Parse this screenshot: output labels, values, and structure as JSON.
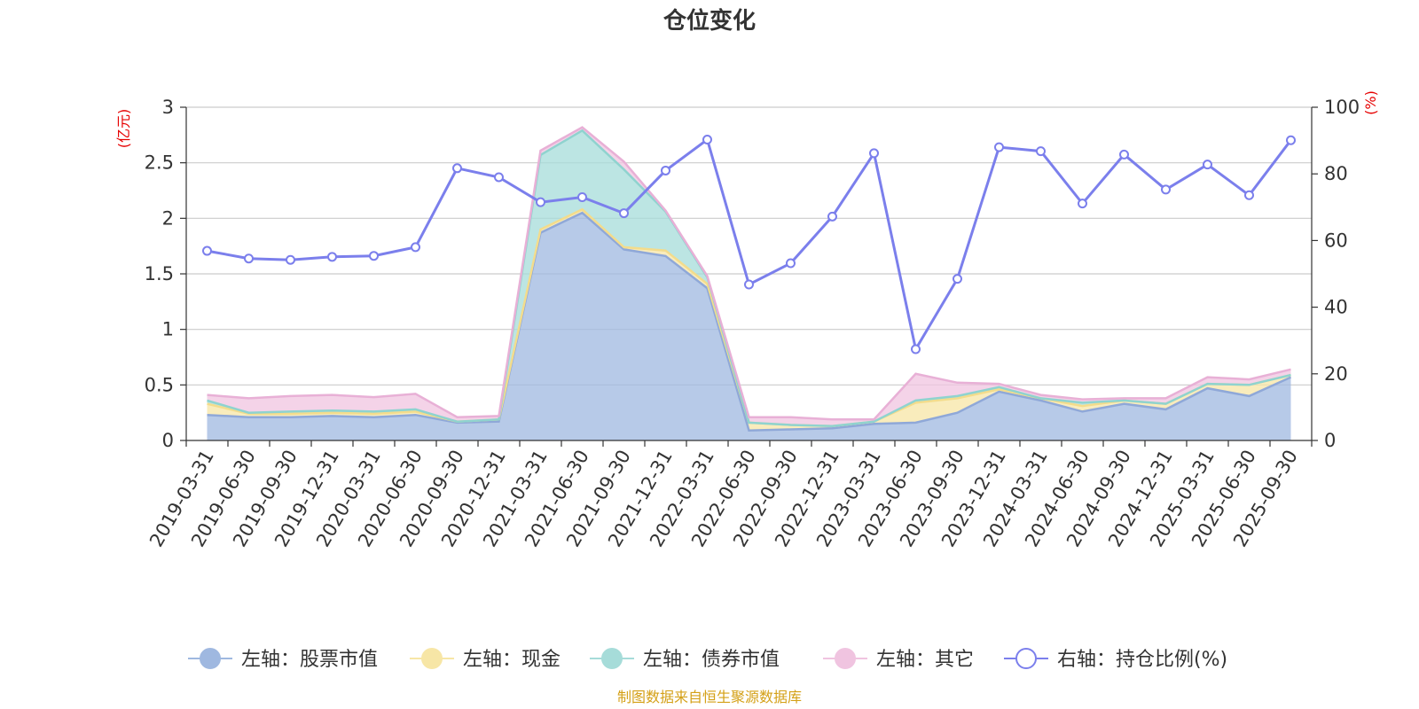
{
  "chart_data": {
    "type": "area",
    "title": "仓位变化",
    "source": "制图数据来自恒生聚源数据库",
    "left_axis": {
      "unit": "(亿元)",
      "range": [
        0,
        3
      ],
      "ticks": [
        "0",
        "0.5",
        "1",
        "1.5",
        "2",
        "2.5",
        "3"
      ],
      "tick_values": [
        0,
        0.5,
        1,
        1.5,
        2,
        2.5,
        3
      ]
    },
    "right_axis": {
      "unit": "(%)",
      "range": [
        0,
        100
      ],
      "ticks": [
        "0",
        "20",
        "40",
        "60",
        "80",
        "100"
      ],
      "tick_values": [
        0,
        20,
        40,
        60,
        80,
        100
      ]
    },
    "categories": [
      "2019-03-31",
      "2019-06-30",
      "2019-09-30",
      "2019-12-31",
      "2020-03-31",
      "2020-06-30",
      "2020-09-30",
      "2020-12-31",
      "2021-03-31",
      "2021-06-30",
      "2021-09-30",
      "2021-12-31",
      "2022-03-31",
      "2022-06-30",
      "2022-09-30",
      "2022-12-31",
      "2023-03-31",
      "2023-06-30",
      "2023-09-30",
      "2023-12-31",
      "2024-03-31",
      "2024-06-30",
      "2024-09-30",
      "2024-12-31",
      "2025-03-31",
      "2025-06-30",
      "2025-09-30"
    ],
    "stacked_series": [
      {
        "name": "左轴：股票市值",
        "color": "#9fb8e0",
        "values": [
          0.23,
          0.21,
          0.21,
          0.22,
          0.21,
          0.23,
          0.16,
          0.17,
          1.87,
          2.05,
          1.72,
          1.66,
          1.37,
          0.09,
          0.1,
          0.11,
          0.15,
          0.16,
          0.25,
          0.44,
          0.36,
          0.26,
          0.33,
          0.28,
          0.47,
          0.4,
          0.57
        ]
      },
      {
        "name": "左轴：现金",
        "color": "#f7e6a6",
        "values": [
          0.1,
          0.03,
          0.03,
          0.03,
          0.03,
          0.03,
          0.01,
          0.02,
          0.03,
          0.03,
          0.02,
          0.05,
          0.04,
          0.07,
          0.04,
          0.02,
          0.02,
          0.18,
          0.13,
          0.02,
          0.02,
          0.05,
          0.03,
          0.05,
          0.04,
          0.1,
          0.02
        ]
      },
      {
        "name": "左轴：债券市值",
        "color": "#a6dcd9",
        "values": [
          0.03,
          0.01,
          0.02,
          0.02,
          0.02,
          0.02,
          0.0,
          0.0,
          0.67,
          0.71,
          0.7,
          0.35,
          0.06,
          0.0,
          0.0,
          0.0,
          0.0,
          0.02,
          0.02,
          0.02,
          0.0,
          0.03,
          0.0,
          0.0,
          0.0,
          0.0,
          0.0
        ]
      },
      {
        "name": "左轴：其它",
        "color": "#f0c4e0",
        "values": [
          0.05,
          0.13,
          0.14,
          0.14,
          0.13,
          0.14,
          0.04,
          0.03,
          0.04,
          0.03,
          0.07,
          0.01,
          0.01,
          0.05,
          0.07,
          0.06,
          0.02,
          0.24,
          0.12,
          0.03,
          0.03,
          0.03,
          0.02,
          0.05,
          0.06,
          0.05,
          0.05
        ]
      }
    ],
    "line_series": {
      "name": "右轴：持仓比例(%)",
      "color": "#7b7fec",
      "axis": "right",
      "values": [
        56.9,
        54.6,
        54.2,
        55.1,
        55.4,
        58.0,
        81.7,
        79.0,
        71.5,
        73.0,
        68.2,
        81.0,
        90.3,
        46.8,
        53.2,
        67.2,
        86.2,
        27.4,
        48.5,
        88.0,
        86.8,
        71.1,
        85.8,
        75.3,
        82.8,
        73.6,
        90.1
      ]
    }
  }
}
